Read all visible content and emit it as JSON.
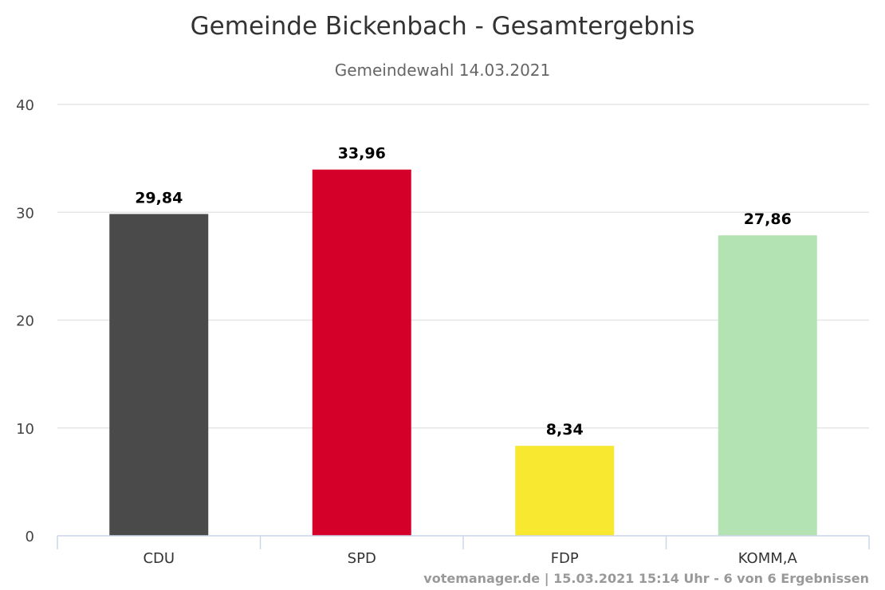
{
  "chart_data": {
    "type": "bar",
    "title": "Gemeinde Bickenbach - Gesamtergebnis",
    "subtitle": "Gemeindewahl 14.03.2021",
    "categories": [
      "CDU",
      "SPD",
      "FDP",
      "KOMM,A"
    ],
    "values": [
      29.84,
      33.96,
      8.34,
      27.86
    ],
    "value_labels": [
      "29,84",
      "33,96",
      "8,34",
      "27,86"
    ],
    "colors": [
      "#4a4a4a",
      "#d50029",
      "#f8e82f",
      "#b3e3b2"
    ],
    "ylim": [
      0,
      40
    ],
    "yticks": [
      0,
      10,
      20,
      30,
      40
    ],
    "xlabel": "",
    "ylabel": "",
    "grid": true,
    "legend": "none"
  },
  "credits": "votemanager.de | 15.03.2021 15:14 Uhr - 6 von 6 Ergebnissen"
}
